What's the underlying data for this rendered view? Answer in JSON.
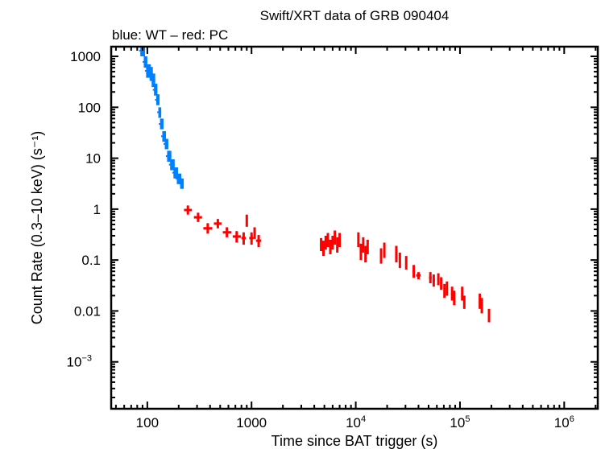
{
  "chart_data": {
    "type": "scatter",
    "title": "Swift/XRT data of GRB 090404",
    "subtitle": "blue: WT – red: PC",
    "xlabel": "Time since BAT trigger (s)",
    "ylabel": "Count Rate (0.3–10 keV) (s⁻¹)",
    "xscale": "log",
    "yscale": "log",
    "xlim": [
      45,
      2100000
    ],
    "ylim": [
      0.00012,
      1550
    ],
    "grid": false,
    "xticks": [
      {
        "value": 100,
        "label": "100",
        "exp": ""
      },
      {
        "value": 1000,
        "label": "1000",
        "exp": ""
      },
      {
        "value": 10000,
        "label": "10",
        "exp": "4"
      },
      {
        "value": 100000,
        "label": "10",
        "exp": "5"
      },
      {
        "value": 1000000,
        "label": "10",
        "exp": "6"
      }
    ],
    "yticks": [
      {
        "value": 1000,
        "label": "1000",
        "exp": ""
      },
      {
        "value": 100,
        "label": "100",
        "exp": ""
      },
      {
        "value": 10,
        "label": "10",
        "exp": ""
      },
      {
        "value": 1,
        "label": "1",
        "exp": ""
      },
      {
        "value": 0.1,
        "label": "0.1",
        "exp": ""
      },
      {
        "value": 0.01,
        "label": "0.01",
        "exp": ""
      },
      {
        "value": 0.001,
        "label": "10",
        "exp": "−3"
      }
    ],
    "series": [
      {
        "name": "WT",
        "color": "#0080ff",
        "style": "band",
        "points": [
          {
            "t": 88,
            "r": 1300,
            "lo": 1000,
            "hi": 1550
          },
          {
            "t": 95,
            "r": 780,
            "lo": 600,
            "hi": 1000
          },
          {
            "t": 100,
            "r": 520,
            "lo": 380,
            "hi": 700
          },
          {
            "t": 108,
            "r": 460,
            "lo": 330,
            "hi": 620
          },
          {
            "t": 113,
            "r": 340,
            "lo": 250,
            "hi": 460
          },
          {
            "t": 119,
            "r": 220,
            "lo": 170,
            "hi": 290
          },
          {
            "t": 125,
            "r": 140,
            "lo": 110,
            "hi": 180
          },
          {
            "t": 131,
            "r": 80,
            "lo": 62,
            "hi": 100
          },
          {
            "t": 136,
            "r": 47,
            "lo": 37,
            "hi": 60
          },
          {
            "t": 143,
            "r": 27,
            "lo": 21,
            "hi": 34
          },
          {
            "t": 151,
            "r": 19,
            "lo": 15,
            "hi": 24
          },
          {
            "t": 159,
            "r": 11,
            "lo": 8.5,
            "hi": 14
          },
          {
            "t": 170,
            "r": 7.5,
            "lo": 5.8,
            "hi": 9.5
          },
          {
            "t": 183,
            "r": 5.2,
            "lo": 4.0,
            "hi": 6.6
          },
          {
            "t": 197,
            "r": 4.0,
            "lo": 3.1,
            "hi": 5.0
          },
          {
            "t": 212,
            "r": 3.2,
            "lo": 2.5,
            "hi": 4.0
          }
        ]
      },
      {
        "name": "PC",
        "color": "#ff0000",
        "style": "crosses",
        "points": [
          {
            "t": 245,
            "r": 0.96,
            "tlo": 225,
            "thi": 268,
            "lo": 0.78,
            "hi": 1.18
          },
          {
            "t": 307,
            "r": 0.69,
            "tlo": 280,
            "thi": 335,
            "lo": 0.56,
            "hi": 0.85
          },
          {
            "t": 380,
            "r": 0.42,
            "tlo": 345,
            "thi": 420,
            "lo": 0.33,
            "hi": 0.53
          },
          {
            "t": 475,
            "r": 0.52,
            "tlo": 435,
            "thi": 515,
            "lo": 0.42,
            "hi": 0.64
          },
          {
            "t": 580,
            "r": 0.35,
            "tlo": 530,
            "thi": 640,
            "lo": 0.28,
            "hi": 0.44
          },
          {
            "t": 720,
            "r": 0.29,
            "tlo": 660,
            "thi": 790,
            "lo": 0.22,
            "hi": 0.37
          },
          {
            "t": 840,
            "r": 0.27,
            "tlo": 800,
            "thi": 880,
            "lo": 0.2,
            "hi": 0.35
          },
          {
            "t": 900,
            "r": 0.6,
            "tlo": 885,
            "thi": 915,
            "lo": 0.45,
            "hi": 0.78
          },
          {
            "t": 1000,
            "r": 0.27,
            "tlo": 950,
            "thi": 1040,
            "lo": 0.2,
            "hi": 0.35
          },
          {
            "t": 1070,
            "r": 0.34,
            "tlo": 1045,
            "thi": 1100,
            "lo": 0.26,
            "hi": 0.44
          },
          {
            "t": 1170,
            "r": 0.24,
            "tlo": 1105,
            "thi": 1240,
            "lo": 0.18,
            "hi": 0.31
          },
          {
            "t": 4650,
            "r": 0.2,
            "tlo": 4550,
            "thi": 4750,
            "lo": 0.15,
            "hi": 0.27
          },
          {
            "t": 4900,
            "r": 0.17,
            "tlo": 4800,
            "thi": 5000,
            "lo": 0.12,
            "hi": 0.24
          },
          {
            "t": 5150,
            "r": 0.22,
            "tlo": 5050,
            "thi": 5250,
            "lo": 0.16,
            "hi": 0.3
          },
          {
            "t": 5400,
            "r": 0.25,
            "tlo": 5300,
            "thi": 5500,
            "lo": 0.18,
            "hi": 0.34
          },
          {
            "t": 5700,
            "r": 0.18,
            "tlo": 5600,
            "thi": 5800,
            "lo": 0.13,
            "hi": 0.25
          },
          {
            "t": 6000,
            "r": 0.22,
            "tlo": 5900,
            "thi": 6100,
            "lo": 0.16,
            "hi": 0.3
          },
          {
            "t": 6300,
            "r": 0.28,
            "tlo": 6200,
            "thi": 6400,
            "lo": 0.2,
            "hi": 0.38
          },
          {
            "t": 6650,
            "r": 0.2,
            "tlo": 6550,
            "thi": 6750,
            "lo": 0.14,
            "hi": 0.28
          },
          {
            "t": 7000,
            "r": 0.25,
            "tlo": 6900,
            "thi": 7100,
            "lo": 0.18,
            "hi": 0.34
          },
          {
            "t": 10600,
            "r": 0.25,
            "tlo": 10400,
            "thi": 10800,
            "lo": 0.18,
            "hi": 0.35
          },
          {
            "t": 11200,
            "r": 0.15,
            "tlo": 11000,
            "thi": 11400,
            "lo": 0.1,
            "hi": 0.21
          },
          {
            "t": 11800,
            "r": 0.2,
            "tlo": 11600,
            "thi": 12000,
            "lo": 0.14,
            "hi": 0.28
          },
          {
            "t": 12400,
            "r": 0.13,
            "tlo": 12200,
            "thi": 12600,
            "lo": 0.09,
            "hi": 0.19
          },
          {
            "t": 13000,
            "r": 0.18,
            "tlo": 12800,
            "thi": 13200,
            "lo": 0.13,
            "hi": 0.25
          },
          {
            "t": 17500,
            "r": 0.12,
            "tlo": 17200,
            "thi": 17800,
            "lo": 0.085,
            "hi": 0.17
          },
          {
            "t": 18800,
            "r": 0.16,
            "tlo": 18500,
            "thi": 19100,
            "lo": 0.11,
            "hi": 0.22
          },
          {
            "t": 24500,
            "r": 0.13,
            "tlo": 24000,
            "thi": 25000,
            "lo": 0.09,
            "hi": 0.19
          },
          {
            "t": 26500,
            "r": 0.1,
            "tlo": 26000,
            "thi": 27000,
            "lo": 0.07,
            "hi": 0.14
          },
          {
            "t": 30500,
            "r": 0.09,
            "tlo": 29800,
            "thi": 31200,
            "lo": 0.065,
            "hi": 0.12
          },
          {
            "t": 36000,
            "r": 0.06,
            "tlo": 35000,
            "thi": 37000,
            "lo": 0.045,
            "hi": 0.08
          },
          {
            "t": 40000,
            "r": 0.05,
            "tlo": 38000,
            "thi": 42000,
            "lo": 0.042,
            "hi": 0.058
          },
          {
            "t": 52000,
            "r": 0.045,
            "tlo": 50500,
            "thi": 53500,
            "lo": 0.035,
            "hi": 0.058
          },
          {
            "t": 56000,
            "r": 0.04,
            "tlo": 54500,
            "thi": 57500,
            "lo": 0.03,
            "hi": 0.052
          },
          {
            "t": 62000,
            "r": 0.042,
            "tlo": 60500,
            "thi": 63500,
            "lo": 0.032,
            "hi": 0.055
          },
          {
            "t": 66000,
            "r": 0.035,
            "tlo": 64500,
            "thi": 67500,
            "lo": 0.026,
            "hi": 0.046
          },
          {
            "t": 71000,
            "r": 0.025,
            "tlo": 69500,
            "thi": 72500,
            "lo": 0.018,
            "hi": 0.034
          },
          {
            "t": 75000,
            "r": 0.028,
            "tlo": 73500,
            "thi": 76500,
            "lo": 0.02,
            "hi": 0.038
          },
          {
            "t": 84000,
            "r": 0.022,
            "tlo": 82000,
            "thi": 86000,
            "lo": 0.016,
            "hi": 0.03
          },
          {
            "t": 88000,
            "r": 0.018,
            "tlo": 86000,
            "thi": 90000,
            "lo": 0.013,
            "hi": 0.025
          },
          {
            "t": 105000,
            "r": 0.022,
            "tlo": 103000,
            "thi": 107000,
            "lo": 0.016,
            "hi": 0.03
          },
          {
            "t": 110000,
            "r": 0.015,
            "tlo": 108000,
            "thi": 112000,
            "lo": 0.011,
            "hi": 0.02
          },
          {
            "t": 155000,
            "r": 0.016,
            "tlo": 152000,
            "thi": 158000,
            "lo": 0.011,
            "hi": 0.022
          },
          {
            "t": 162000,
            "r": 0.013,
            "tlo": 159000,
            "thi": 165000,
            "lo": 0.009,
            "hi": 0.018
          },
          {
            "t": 190000,
            "r": 0.008,
            "tlo": 186000,
            "thi": 194000,
            "lo": 0.006,
            "hi": 0.011
          }
        ]
      }
    ]
  }
}
